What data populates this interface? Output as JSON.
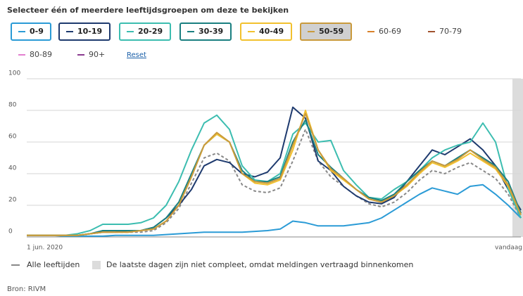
{
  "chart_data": {
    "type": "line",
    "title": "Selecteer één of meerdere leeftijdsgroepen om deze te bekijken",
    "categories": [
      "1 jun. 2020",
      null,
      null,
      null,
      null,
      null,
      null,
      null,
      null,
      null,
      null,
      null,
      null,
      null,
      null,
      null,
      null,
      null,
      null,
      null,
      null,
      null,
      null,
      null,
      null,
      null,
      null,
      null,
      null,
      null,
      null,
      null,
      null,
      null,
      null,
      null,
      null,
      null,
      null,
      "vandaag"
    ],
    "ylim": [
      0,
      100
    ],
    "yticks": [
      0,
      20,
      40,
      60,
      80,
      100
    ],
    "grid": true,
    "series": [
      {
        "name": "0-9",
        "color": "#2b9bd6",
        "values": [
          1,
          1,
          1,
          0.5,
          0.5,
          0.5,
          0.5,
          1,
          1,
          1,
          1,
          1.5,
          2,
          2.5,
          3,
          3,
          3,
          3,
          3.5,
          4,
          5,
          10,
          9,
          7,
          7,
          7,
          8,
          9,
          12,
          17,
          22,
          27,
          31,
          29,
          27,
          32,
          33,
          27,
          20,
          12
        ]
      },
      {
        "name": "10-19",
        "color": "#1e3a6e",
        "values": [
          1,
          1,
          1,
          1,
          1,
          2,
          3,
          3,
          4,
          4,
          6,
          12,
          20,
          30,
          45,
          49,
          47,
          40,
          38,
          41,
          50,
          82,
          75,
          48,
          42,
          32,
          26,
          22,
          21,
          25,
          35,
          45,
          55,
          52,
          57,
          62,
          55,
          45,
          30,
          17
        ]
      },
      {
        "name": "20-29",
        "color": "#3cbdb0",
        "values": [
          1,
          1,
          1,
          1,
          2,
          4,
          8,
          8,
          8,
          9,
          12,
          20,
          35,
          55,
          72,
          77,
          68,
          45,
          36,
          35,
          40,
          65,
          72,
          60,
          61,
          42,
          33,
          25,
          24,
          30,
          35,
          42,
          50,
          55,
          58,
          60,
          72,
          60,
          30,
          12
        ]
      },
      {
        "name": "30-39",
        "color": "#1a7f80",
        "values": [
          1,
          1,
          1,
          1,
          1,
          2,
          4,
          4,
          4,
          4,
          6,
          12,
          22,
          40,
          58,
          65,
          60,
          42,
          35,
          35,
          38,
          60,
          74,
          52,
          44,
          37,
          30,
          25,
          23,
          27,
          35,
          42,
          48,
          45,
          50,
          55,
          50,
          45,
          35,
          15
        ]
      },
      {
        "name": "40-49",
        "color": "#f2c12e",
        "values": [
          1,
          1,
          1,
          1,
          1,
          2,
          3,
          3,
          3,
          4,
          5,
          10,
          20,
          38,
          58,
          65,
          60,
          40,
          34,
          33,
          36,
          55,
          80,
          55,
          42,
          36,
          30,
          24,
          22,
          26,
          32,
          40,
          47,
          44,
          48,
          53,
          48,
          43,
          32,
          14
        ]
      },
      {
        "name": "50-59",
        "color": "#c99a3c",
        "values": [
          1,
          1,
          1,
          1,
          1,
          2,
          3,
          3,
          3,
          4,
          5,
          10,
          20,
          38,
          58,
          66,
          60,
          40,
          35,
          34,
          37,
          58,
          78,
          55,
          43,
          37,
          30,
          24,
          22,
          26,
          33,
          41,
          48,
          45,
          49,
          55,
          49,
          44,
          33,
          14
        ]
      }
    ],
    "unselected": [
      {
        "name": "60-69",
        "color": "#d9822b"
      },
      {
        "name": "70-79",
        "color": "#a0522d"
      },
      {
        "name": "80-89",
        "color": "#e37fd0"
      },
      {
        "name": "90+",
        "color": "#8b3a8f"
      }
    ],
    "reset": "Reset",
    "overall": {
      "name": "Alle leeftijden",
      "color": "#888888",
      "values": [
        1,
        1,
        1,
        1,
        1,
        2,
        3,
        3,
        3,
        3,
        4,
        9,
        18,
        34,
        50,
        53,
        48,
        33,
        29,
        28,
        31,
        48,
        68,
        48,
        38,
        32,
        26,
        21,
        19,
        22,
        28,
        36,
        42,
        40,
        44,
        47,
        42,
        37,
        27,
        12
      ]
    },
    "incomplete_note": "De laatste dagen zijn niet compleet, omdat meldingen vertraagd binnenkomen",
    "source": "Bron: RIVM"
  }
}
